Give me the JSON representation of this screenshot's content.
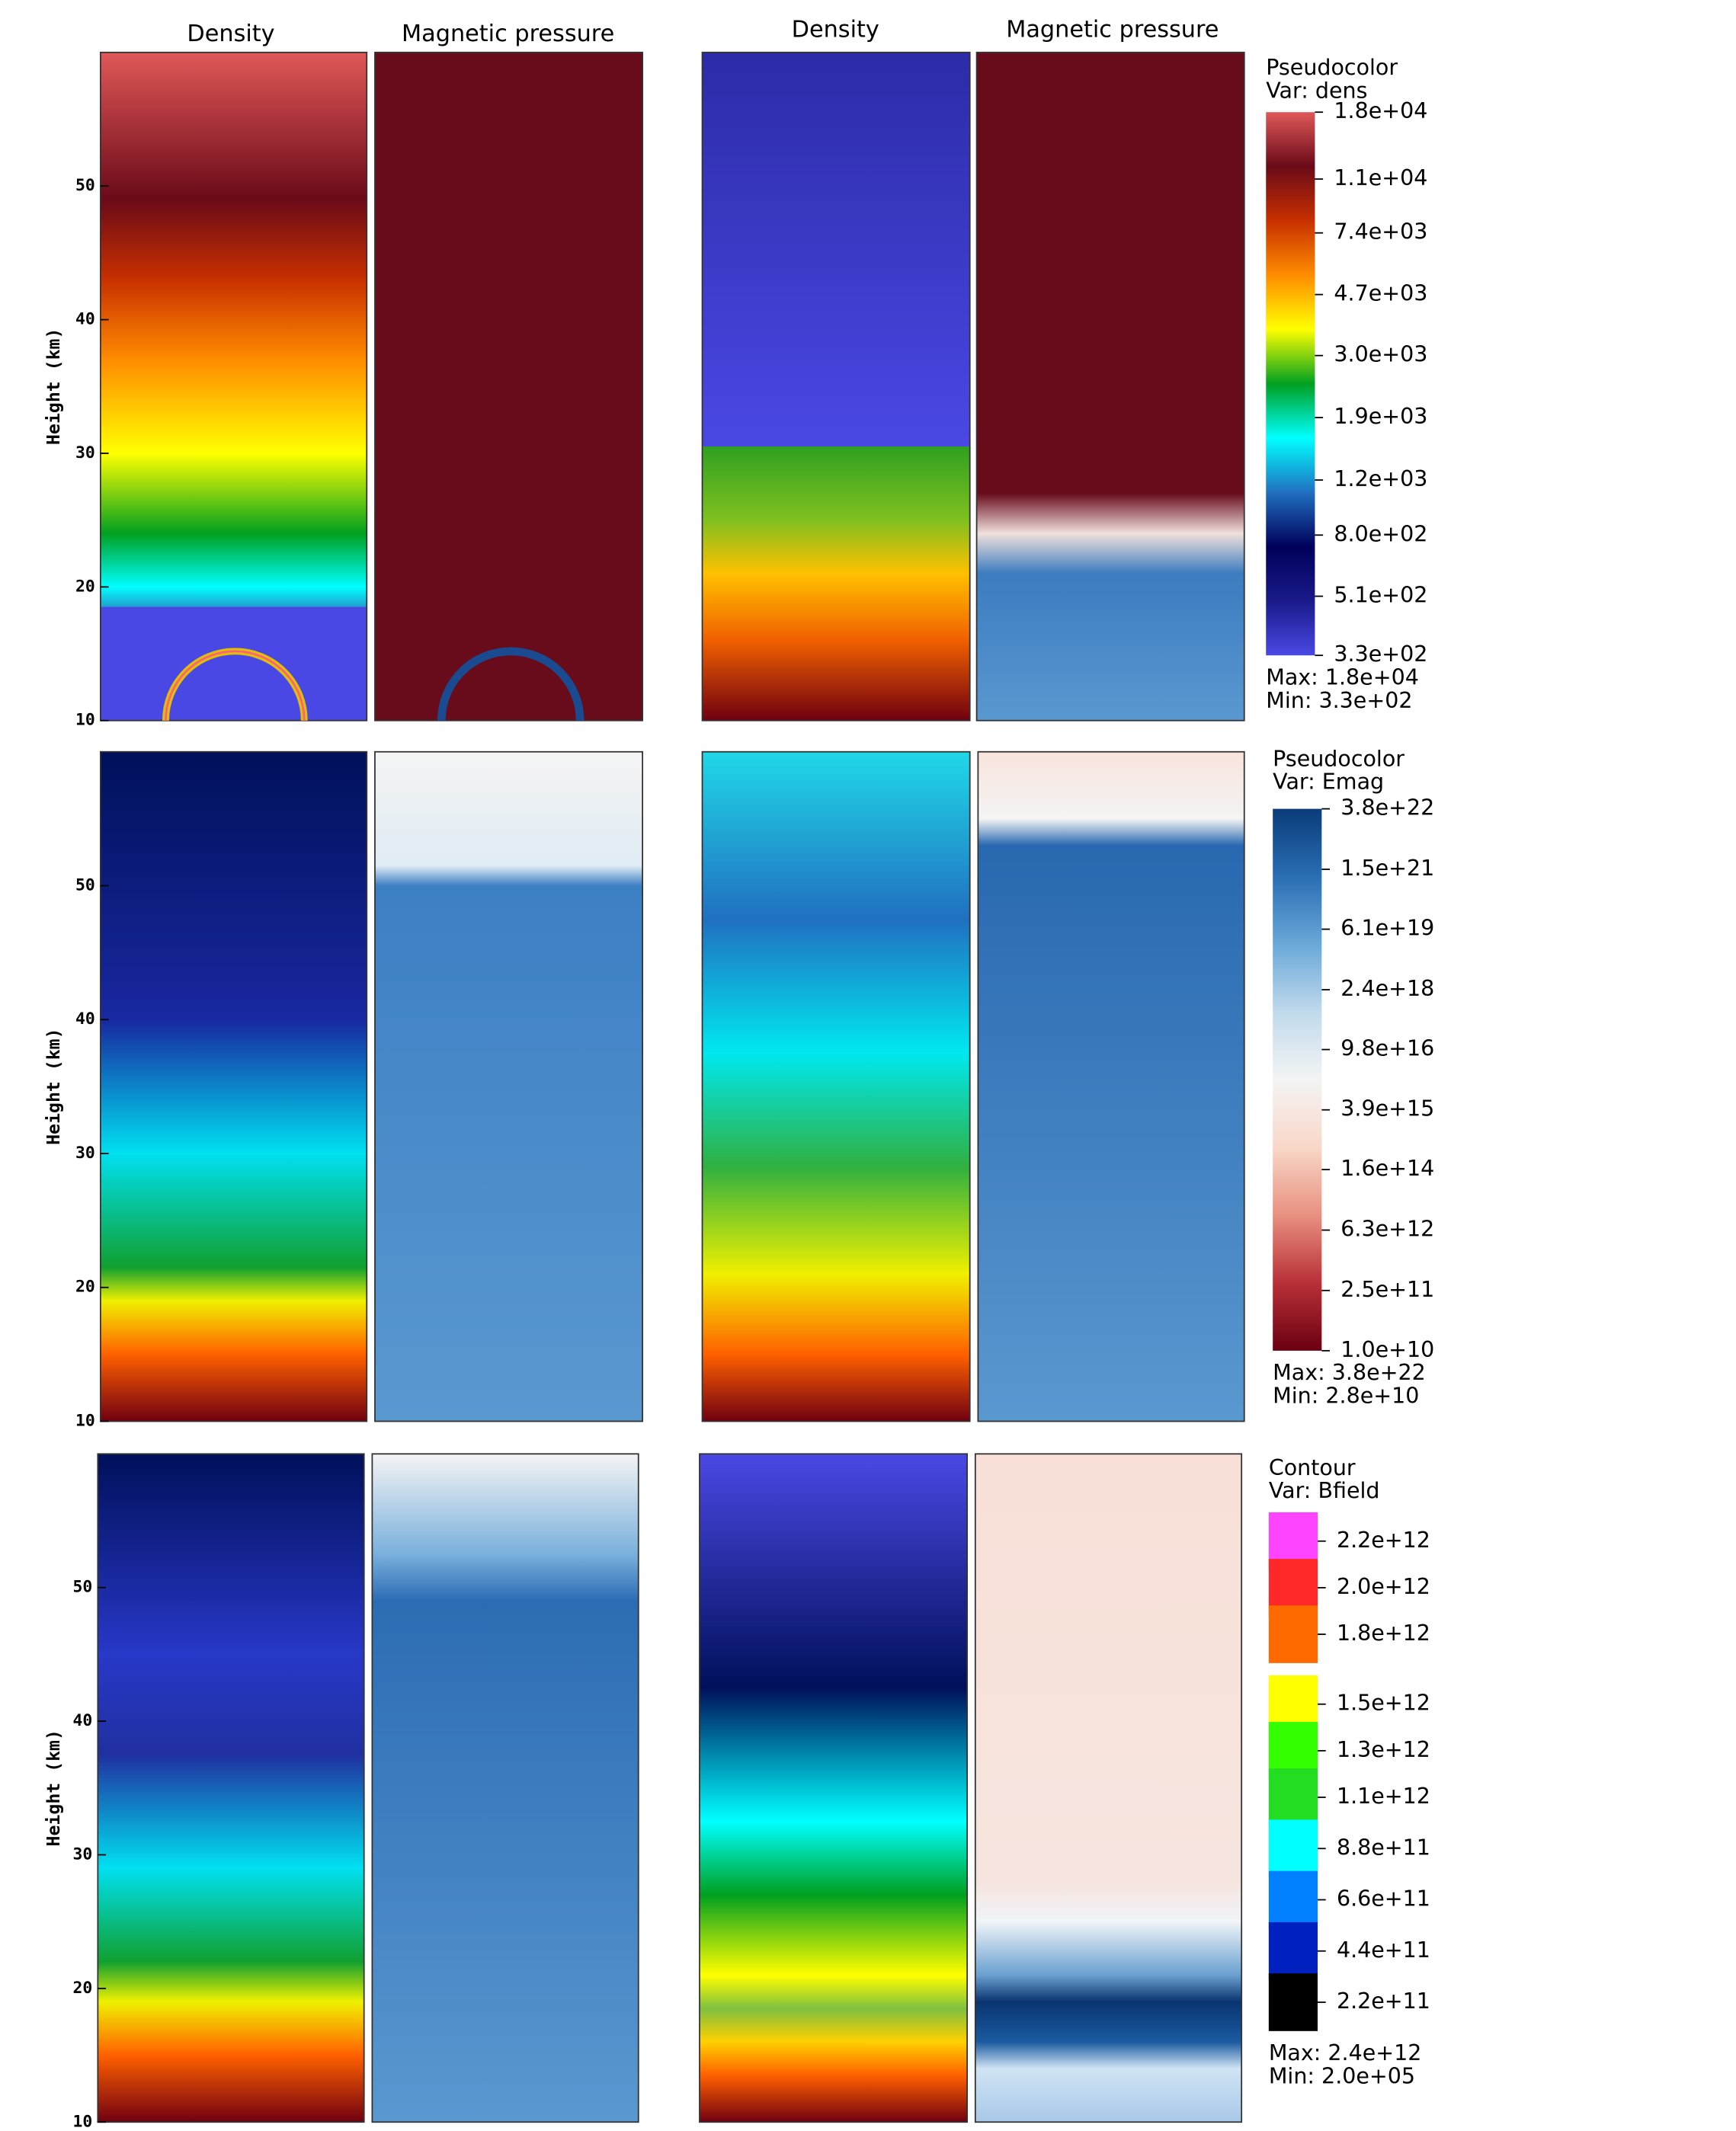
{
  "column_titles": [
    "Density",
    "Magnetic pressure",
    "Density",
    "Magnetic pressure"
  ],
  "rows": [
    {
      "y_label": "Height (km)",
      "ylim": [
        10,
        60
      ],
      "yticks": [
        10,
        20,
        30,
        40,
        50
      ],
      "colorbar": {
        "type": "pseudocolor",
        "title": "Pseudocolor",
        "variable": "Var: dens",
        "scale": "log",
        "lim": [
          330,
          18000
        ],
        "ticks": [
          {
            "value": 18000,
            "label": "1.8e+04"
          },
          {
            "value": 11000,
            "label": "1.1e+04"
          },
          {
            "value": 7400,
            "label": "7.4e+03"
          },
          {
            "value": 4700,
            "label": "4.7e+03"
          },
          {
            "value": 3000,
            "label": "3.0e+03"
          },
          {
            "value": 1900,
            "label": "1.9e+03"
          },
          {
            "value": 1200,
            "label": "1.2e+03"
          },
          {
            "value": 800,
            "label": "8.0e+02"
          },
          {
            "value": 510,
            "label": "5.1e+02"
          },
          {
            "value": 330,
            "label": "3.3e+02"
          }
        ],
        "colors": [
          "#4a48e4",
          "#1a1a8a",
          "#00005a",
          "#2070c0",
          "#00ffff",
          "#00a020",
          "#ffff00",
          "#ff8c00",
          "#c83000",
          "#6a0a18",
          "#e05858"
        ],
        "max": "Max:  1.8e+04",
        "min": "Min:  3.3e+02"
      }
    },
    {
      "y_label": "Height (km)",
      "ylim": [
        10,
        60
      ],
      "yticks": [
        10,
        20,
        30,
        40,
        50
      ],
      "colorbar": {
        "type": "pseudocolor",
        "title": "Pseudocolor",
        "variable": "Var: Emag",
        "scale": "log",
        "lim": [
          10000000000.0,
          3.8e+22
        ],
        "ticks": [
          {
            "value": 3.8e+22,
            "label": "3.8e+22"
          },
          {
            "value": 1.5e+21,
            "label": "1.5e+21"
          },
          {
            "value": 6.1e+19,
            "label": "6.1e+19"
          },
          {
            "value": 2.4e+18,
            "label": "2.4e+18"
          },
          {
            "value": 9.8e+16,
            "label": "9.8e+16"
          },
          {
            "value": 3900000000000000.0,
            "label": "3.9e+15"
          },
          {
            "value": 160000000000000.0,
            "label": "1.6e+14"
          },
          {
            "value": 6300000000000.0,
            "label": "6.3e+12"
          },
          {
            "value": 250000000000.0,
            "label": "2.5e+11"
          },
          {
            "value": 10000000000.0,
            "label": "1.0e+10"
          }
        ],
        "colors": [
          "#6a0010",
          "#b83038",
          "#e89080",
          "#f8d8c8",
          "#f4f4f4",
          "#c0daec",
          "#6aa8d8",
          "#2a6eb4",
          "#0a3c78"
        ],
        "max": "Max:  3.8e+22",
        "min": "Min:  2.8e+10"
      }
    },
    {
      "y_label": "Height (km)",
      "ylim": [
        10,
        60
      ],
      "yticks": [
        10,
        20,
        30,
        40,
        50
      ],
      "colorbar": {
        "type": "contour",
        "title": "Contour",
        "variable": "Var: Bfield",
        "scale": "linear",
        "lim": [
          220000000000.0,
          2200000000000.0
        ],
        "ticks": [
          {
            "value": 2200000000000.0,
            "label": "2.2e+12"
          },
          {
            "value": 2000000000000.0,
            "label": "2.0e+12"
          },
          {
            "value": 1800000000000.0,
            "label": "1.8e+12"
          },
          {
            "value": 1500000000000.0,
            "label": "1.5e+12"
          },
          {
            "value": 1300000000000.0,
            "label": "1.3e+12"
          },
          {
            "value": 1100000000000.0,
            "label": "1.1e+12"
          },
          {
            "value": 880000000000.0,
            "label": "8.8e+11"
          },
          {
            "value": 660000000000.0,
            "label": "6.6e+11"
          },
          {
            "value": 440000000000.0,
            "label": "4.4e+11"
          },
          {
            "value": 220000000000.0,
            "label": "2.2e+11"
          }
        ],
        "colors": [
          "#ff44ff",
          "#ff2828",
          "#ff6a00",
          "#ffff00",
          "#33ff00",
          "#22dd22",
          "#00ffff",
          "#0080ff",
          "#0020c0",
          "#000000"
        ],
        "max": "Max:  2.4e+12",
        "min": "Min:  2.0e+05"
      }
    }
  ]
}
